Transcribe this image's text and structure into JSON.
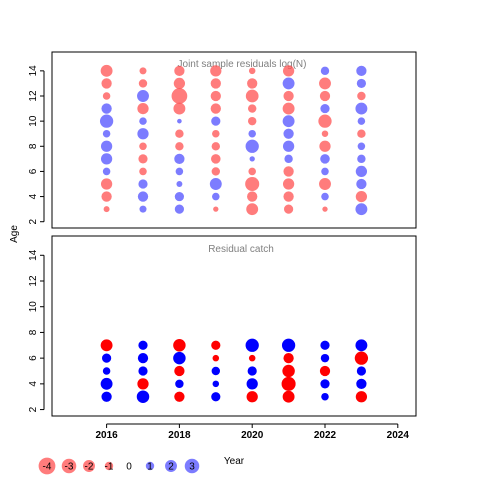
{
  "chart_data": [
    {
      "type": "scatter",
      "encoding": "bubble",
      "title": "Joint sample residuals log(N)",
      "xlim": [
        2014.5,
        2024.5
      ],
      "ylim": [
        1.5,
        15.5
      ],
      "yticks": [
        2,
        4,
        6,
        8,
        10,
        12,
        14
      ],
      "years": [
        2016,
        2017,
        2018,
        2019,
        2020,
        2021,
        2022,
        2023
      ],
      "ages": [
        3,
        4,
        5,
        6,
        7,
        8,
        9,
        10,
        11,
        12,
        13,
        14
      ],
      "residuals": [
        [
          -0.5,
          -1.5,
          -1.8,
          0.8,
          1.8,
          1.8,
          0.8,
          2.5,
          1.5,
          -0.8,
          -1.5,
          -2.0
        ],
        [
          0.7,
          1.5,
          1.2,
          -0.8,
          -1.2,
          -0.8,
          1.8,
          0.8,
          -1.8,
          2.0,
          -1.0,
          -0.7
        ],
        [
          1.2,
          1.2,
          0.5,
          0.8,
          1.5,
          -1.0,
          -1.0,
          0.3,
          -2.0,
          -3.5,
          -1.8,
          -1.5
        ],
        [
          -0.4,
          0.8,
          2.0,
          -1.0,
          -1.3,
          -1.0,
          -0.8,
          1.2,
          -1.5,
          -1.5,
          -1.5,
          -1.8
        ],
        [
          -2.0,
          -1.5,
          -2.8,
          -0.8,
          0.4,
          2.5,
          0.8,
          -1.0,
          -1.0,
          -2.3,
          -1.5,
          -0.6
        ],
        [
          -1.2,
          -1.5,
          -1.8,
          -1.5,
          1.0,
          1.8,
          1.5,
          2.0,
          -2.0,
          -1.5,
          2.0,
          -1.8
        ],
        [
          -0.4,
          0.8,
          -2.0,
          0.8,
          1.3,
          -1.8,
          -0.6,
          -2.5,
          1.2,
          -1.5,
          -2.0,
          1.0
        ],
        [
          2.0,
          -1.8,
          1.5,
          1.8,
          1.0,
          0.8,
          -1.0,
          0.8,
          2.0,
          -1.0,
          1.2,
          1.5
        ]
      ]
    },
    {
      "type": "scatter",
      "encoding": "bubble",
      "title": "Residual catch",
      "xlabel": "Year",
      "ylabel": "Age",
      "xlim": [
        2014.5,
        2024.5
      ],
      "ylim": [
        1.5,
        15.5
      ],
      "xticks": [
        2016,
        2018,
        2020,
        2022,
        2024
      ],
      "yticks": [
        2,
        4,
        6,
        8,
        10,
        12,
        14
      ],
      "years": [
        2016,
        2017,
        2018,
        2019,
        2020,
        2021,
        2022,
        2023
      ],
      "ages": [
        3,
        4,
        5,
        6,
        7
      ],
      "residuals": [
        [
          1.5,
          2.0,
          0.8,
          1.2,
          -2.0
        ],
        [
          2.2,
          -1.8,
          1.2,
          1.5,
          1.2
        ],
        [
          -1.5,
          1.0,
          -1.5,
          2.2,
          -2.2
        ],
        [
          1.2,
          0.6,
          1.0,
          -0.6,
          -1.2
        ],
        [
          -1.8,
          1.8,
          1.2,
          -0.6,
          2.5
        ],
        [
          -2.0,
          -2.8,
          -2.2,
          -1.5,
          2.5
        ],
        [
          0.8,
          1.2,
          -1.5,
          1.0,
          1.2
        ],
        [
          -1.8,
          1.5,
          1.2,
          -2.5,
          2.0
        ]
      ]
    }
  ],
  "legend": {
    "values": [
      -4,
      -3,
      -2,
      -1,
      0,
      1,
      2,
      3
    ]
  },
  "colors": {
    "negative": "#ff5050",
    "positive": "#5050ff",
    "negative_solid": "#ff0000",
    "positive_solid": "#0000ff"
  }
}
